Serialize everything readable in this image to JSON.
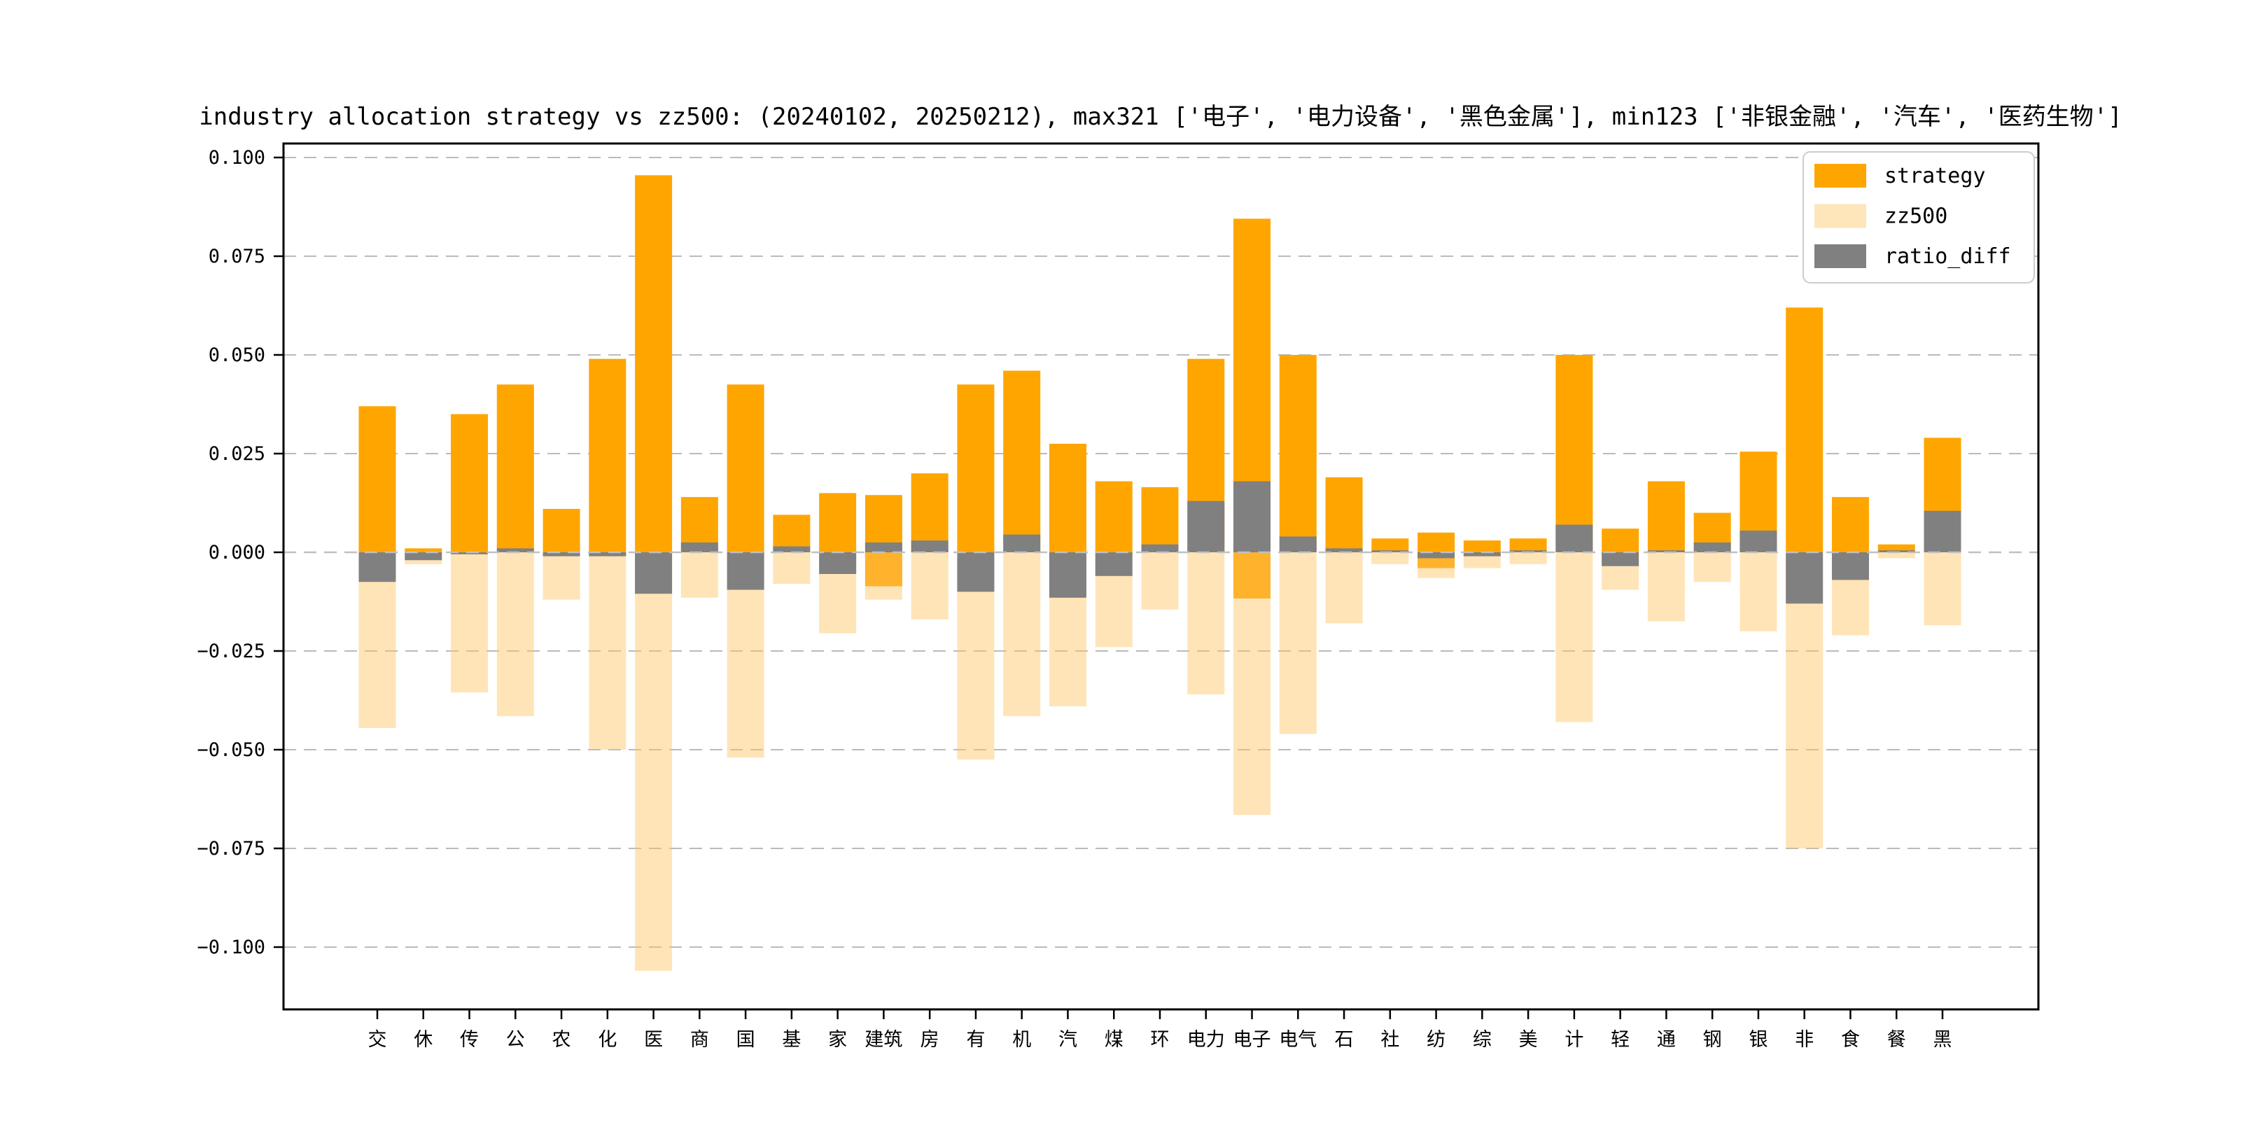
{
  "chart_data": {
    "type": "bar",
    "title": "industry allocation strategy vs zz500: (20240102, 20250212), max321 ['电子', '电力设备', '黑色金属'], min123 ['非银金融', '汽车', '医药生物']",
    "categories": [
      "交",
      "休",
      "传",
      "公",
      "农",
      "化",
      "医",
      "商",
      "国",
      "基",
      "家",
      "建筑",
      "房",
      "有",
      "机",
      "汽",
      "煤",
      "环",
      "电力",
      "电子",
      "电气",
      "石",
      "社",
      "纺",
      "综",
      "美",
      "计",
      "轻",
      "通",
      "钢",
      "银",
      "非",
      "食",
      "餐",
      "黑"
    ],
    "series": [
      {
        "name": "strategy",
        "color": "#FFA500",
        "values": [
          0.037,
          0.001,
          0.035,
          0.0425,
          0.011,
          0.049,
          0.0955,
          0.014,
          0.0425,
          0.0095,
          0.015,
          0.0145,
          0.02,
          0.0425,
          0.046,
          0.0275,
          0.018,
          0.0165,
          0.049,
          0.0845,
          0.05,
          0.019,
          0.0035,
          0.005,
          0.003,
          0.0035,
          0.05,
          0.006,
          0.018,
          0.01,
          0.0255,
          0.062,
          0.014,
          0.002,
          0.029
        ]
      },
      {
        "name": "zz500",
        "color": "#FFE4B5",
        "values": [
          -0.0445,
          -0.003,
          -0.0355,
          -0.0415,
          -0.012,
          -0.05,
          -0.106,
          -0.0115,
          -0.052,
          -0.008,
          -0.0205,
          -0.012,
          -0.017,
          -0.0525,
          -0.0415,
          -0.039,
          -0.024,
          -0.0145,
          -0.036,
          -0.0665,
          -0.046,
          -0.018,
          -0.003,
          -0.0065,
          -0.004,
          -0.003,
          -0.043,
          -0.0095,
          -0.0175,
          -0.0075,
          -0.02,
          -0.075,
          -0.021,
          -0.0015,
          -0.0185
        ]
      },
      {
        "name": "ratio_diff",
        "color": "#808080",
        "values": [
          -0.0075,
          -0.002,
          -0.0005,
          0.001,
          -0.001,
          -0.001,
          -0.0105,
          0.0025,
          -0.0095,
          0.0015,
          -0.0055,
          0.0025,
          0.003,
          -0.01,
          0.0045,
          -0.0115,
          -0.006,
          0.002,
          0.013,
          0.018,
          0.004,
          0.001,
          0.0005,
          -0.0015,
          -0.001,
          0.0005,
          0.007,
          -0.0035,
          0.0005,
          0.0025,
          0.0055,
          -0.013,
          -0.007,
          0.0005,
          0.0105
        ]
      }
    ],
    "overlap_band_below_zero": {
      "建筑": -0.0086,
      "纺": -0.004,
      "电子": -0.0117
    },
    "ylim": [
      -0.1158,
      0.1035
    ],
    "yticks": [
      0.1,
      0.075,
      0.05,
      0.025,
      0.0,
      -0.025,
      -0.05,
      -0.075,
      -0.1
    ],
    "ytick_labels": [
      "0.100",
      "0.075",
      "0.050",
      "0.025",
      "0.000",
      "−0.025",
      "−0.050",
      "−0.075",
      "−0.100"
    ],
    "grid": "horizontal dashed",
    "legend_position": "upper right",
    "legend_entries": [
      "strategy",
      "zz500",
      "ratio_diff"
    ],
    "colors": {
      "strategy": "#FFA500",
      "zz500_fill_rgba": "rgba(255,196,95,0.45)",
      "zz500_legend": "#FFE5BA",
      "ratio_diff": "#808080",
      "gridline": "#BBBBBB",
      "zero_line": "#C0C0C0",
      "spine": "#000000"
    }
  }
}
